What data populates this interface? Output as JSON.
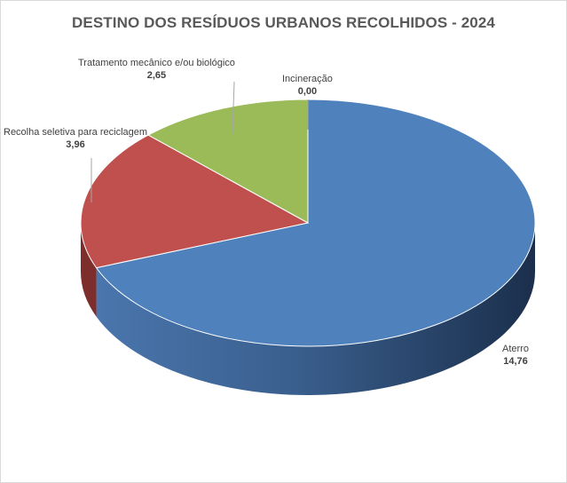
{
  "chart_data": {
    "type": "pie",
    "title": "DESTINO DOS RESÍDUOS URBANOS RECOLHIDOS - 2024",
    "slices": [
      {
        "label": "Aterro",
        "value_label": "14,76",
        "value": 14.76,
        "color": "#4f81bd",
        "side": "#2b4a73"
      },
      {
        "label": "Recolha seletiva para reciclagem",
        "value_label": "3,96",
        "value": 3.96,
        "color": "#c0504d",
        "side": "#7d2e2c"
      },
      {
        "label": "Tratamento mecânico e/ou biológico",
        "value_label": "2,65",
        "value": 2.65,
        "color": "#9bbb59",
        "side": "#5f7a32"
      },
      {
        "label": "Incineração",
        "value_label": "0,00",
        "value": 0.0,
        "color": "#8064a2",
        "side": "#4f3d66"
      }
    ],
    "legend": "none",
    "style": "3d-pie"
  }
}
